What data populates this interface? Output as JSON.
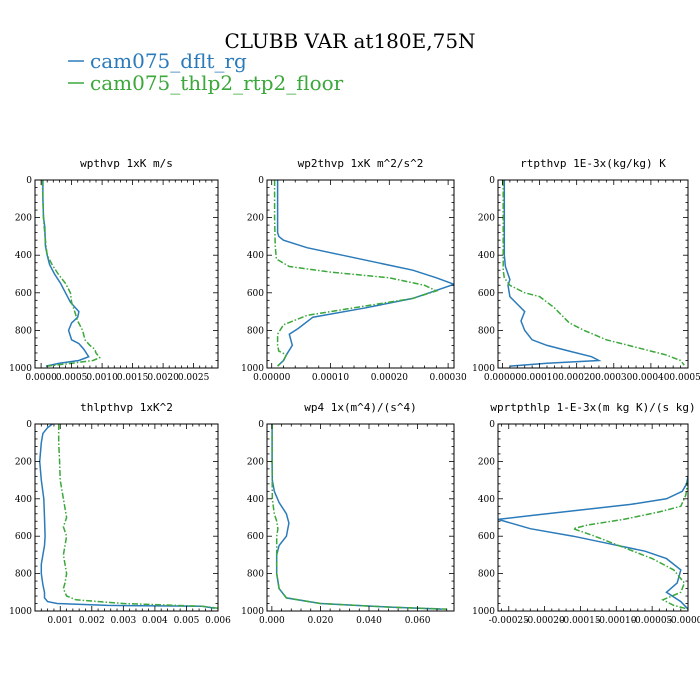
{
  "figure_title": "CLUBB VAR at180E,75N",
  "legend": [
    {
      "label": "cam075_dflt_rg",
      "color": "#2b7bba",
      "dash": "solid"
    },
    {
      "label": "cam075_thlp2_rtp2_floor",
      "color": "#3aa83a",
      "dash": "dashdot"
    }
  ],
  "chart_data": [
    {
      "type": "line",
      "title": "wpthvp  1xK m/s",
      "xlim": [
        -0.0001,
        0.0029
      ],
      "ylim": [
        1000,
        0
      ],
      "xticks": [
        0.0,
        0.0005,
        0.001,
        0.0015,
        0.002,
        0.0025
      ],
      "xtick_labels": [
        "0.0000",
        "0.0005",
        "0.0010",
        "0.0015",
        "0.0020",
        "0.0025"
      ],
      "yticks": [
        0,
        200,
        400,
        600,
        800,
        1000
      ],
      "ytick_labels": [
        "0",
        "200",
        "400",
        "600",
        "800",
        "1000"
      ],
      "series": [
        {
          "name": "cam075_dflt_rg",
          "x": [
            3e-05,
            3e-05,
            4e-05,
            6e-05,
            7e-05,
            0.0001,
            0.00014,
            0.00022,
            0.00032,
            0.0004,
            0.00048,
            0.00062,
            0.0006,
            0.0005,
            0.00045,
            0.0005,
            0.00062,
            0.0007,
            0.00078,
            0.00062,
            0.0003,
            8e-05
          ],
          "y": [
            0,
            100,
            200,
            250,
            350,
            400,
            450,
            500,
            550,
            600,
            650,
            700,
            730,
            760,
            800,
            850,
            870,
            900,
            940,
            960,
            975,
            990
          ]
        },
        {
          "name": "cam075_thlp2_rtp2_floor",
          "x": [
            2e-05,
            3e-05,
            4e-05,
            5e-05,
            8e-05,
            0.0001,
            0.00018,
            0.00028,
            0.0004,
            0.00048,
            0.0005,
            0.00055,
            0.0006,
            0.00068,
            0.00072,
            0.0008,
            0.00088,
            0.0009,
            0.00096,
            0.00085,
            0.0005,
            0.0001
          ],
          "y": [
            0,
            100,
            200,
            250,
            350,
            400,
            450,
            500,
            550,
            600,
            650,
            700,
            750,
            800,
            850,
            880,
            900,
            920,
            945,
            960,
            975,
            990
          ]
        }
      ]
    },
    {
      "type": "line",
      "title": "wp2thvp  1xK m^2/s^2",
      "xlim": [
        -8e-06,
        0.00031
      ],
      "ylim": [
        1000,
        0
      ],
      "xticks": [
        0.0,
        0.0001,
        0.0002,
        0.0003
      ],
      "xtick_labels": [
        "0.00000",
        "0.00010",
        "0.00020",
        "0.00030"
      ],
      "yticks": [
        0,
        200,
        400,
        600,
        800,
        1000
      ],
      "ytick_labels": [
        "0",
        "200",
        "400",
        "600",
        "800",
        "1000"
      ],
      "series": [
        {
          "name": "cam075_dflt_rg",
          "x": [
            1e-05,
            1e-05,
            1e-05,
            1.2e-05,
            2e-05,
            6e-05,
            0.00012,
            0.00018,
            0.00024,
            0.00028,
            0.00031,
            0.00024,
            0.00016,
            7e-05,
            4.5e-05,
            3e-05,
            3.5e-05,
            2.5e-05,
            2e-05,
            1e-05
          ],
          "y": [
            0,
            200,
            280,
            300,
            320,
            360,
            400,
            440,
            480,
            520,
            555,
            630,
            680,
            730,
            790,
            820,
            880,
            930,
            960,
            990
          ]
        },
        {
          "name": "cam075_thlp2_rtp2_floor",
          "x": [
            5e-06,
            5e-06,
            6e-06,
            8e-06,
            3e-05,
            0.0001,
            0.0002,
            0.00026,
            0.00028,
            0.00024,
            0.00014,
            6e-05,
            2e-05,
            1e-05,
            1e-05,
            1.2e-05,
            2.5e-05,
            2e-05,
            1e-05
          ],
          "y": [
            0,
            200,
            350,
            420,
            460,
            490,
            520,
            560,
            590,
            630,
            680,
            720,
            770,
            820,
            880,
            910,
            930,
            960,
            990
          ]
        }
      ]
    },
    {
      "type": "line",
      "title": "rtpthvp  1E-3x(kg/kg) K",
      "xlim": [
        -1.2e-05,
        0.0005
      ],
      "ylim": [
        1000,
        0
      ],
      "xticks": [
        0.0,
        0.0001,
        0.0002,
        0.0003,
        0.0004,
        0.0005
      ],
      "xtick_labels": [
        "0.00000",
        "0.00010",
        "0.00020",
        "0.00030",
        "0.00040",
        "0.00050"
      ],
      "yticks": [
        0,
        200,
        400,
        600,
        800,
        1000
      ],
      "ytick_labels": [
        "0",
        "200",
        "400",
        "600",
        "800",
        "1000"
      ],
      "series": [
        {
          "name": "cam075_dflt_rg",
          "x": [
            5e-06,
            5e-06,
            5e-06,
            8e-06,
            1.5e-05,
            2e-05,
            1.5e-05,
            2e-05,
            4e-05,
            6e-05,
            5e-05,
            6e-05,
            8e-05,
            0.00012,
            0.00018,
            0.00024,
            0.00026,
            0.00012,
            2e-05
          ],
          "y": [
            0,
            200,
            400,
            460,
            500,
            530,
            560,
            620,
            660,
            700,
            750,
            800,
            850,
            880,
            910,
            940,
            960,
            975,
            990
          ]
        },
        {
          "name": "cam075_thlp2_rtp2_floor",
          "x": [
            2e-06,
            2e-06,
            2e-06,
            2e-06,
            5e-06,
            2e-05,
            4e-05,
            6e-05,
            0.0001,
            0.00012,
            0.00014,
            0.00016,
            0.00018,
            0.00022,
            0.00028,
            0.00034,
            0.0004,
            0.00044,
            0.00048,
            0.00049
          ],
          "y": [
            0,
            200,
            400,
            480,
            520,
            560,
            580,
            600,
            620,
            650,
            680,
            720,
            760,
            800,
            850,
            880,
            910,
            930,
            960,
            985
          ]
        }
      ]
    },
    {
      "type": "line",
      "title": "thlpthvp  1xK^2",
      "xlim": [
        0.0002,
        0.006
      ],
      "ylim": [
        1000,
        0
      ],
      "xticks": [
        0.001,
        0.002,
        0.003,
        0.004,
        0.005,
        0.006
      ],
      "xtick_labels": [
        "0.001",
        "0.002",
        "0.003",
        "0.004",
        "0.005",
        "0.006"
      ],
      "yticks": [
        0,
        200,
        400,
        600,
        800,
        1000
      ],
      "ytick_labels": [
        "0",
        "200",
        "400",
        "600",
        "800",
        "1000"
      ],
      "series": [
        {
          "name": "cam075_dflt_rg",
          "x": [
            0.00075,
            0.0006,
            0.00045,
            0.0004,
            0.00035,
            0.0004,
            0.00048,
            0.0005,
            0.00052,
            0.0005,
            0.00045,
            0.0004,
            0.0004,
            0.00045,
            0.0005,
            0.0005,
            0.0006,
            0.0009,
            0.0025,
            0.0055,
            0.0059
          ],
          "y": [
            0,
            20,
            50,
            100,
            200,
            300,
            400,
            500,
            600,
            650,
            700,
            750,
            800,
            860,
            900,
            930,
            950,
            960,
            970,
            975,
            985
          ]
        },
        {
          "name": "cam075_thlp2_rtp2_floor",
          "x": [
            0.00095,
            0.00095,
            0.00098,
            0.001,
            0.0011,
            0.0012,
            0.0011,
            0.0012,
            0.0011,
            0.0012,
            0.00115,
            0.0011,
            0.0012,
            0.0015,
            0.003,
            0.0055,
            0.006
          ],
          "y": [
            0,
            100,
            200,
            300,
            400,
            500,
            550,
            600,
            700,
            800,
            850,
            880,
            920,
            940,
            960,
            975,
            985
          ]
        }
      ]
    },
    {
      "type": "line",
      "title": "wp4  1x(m^4)/(s^4)",
      "xlim": [
        -0.002,
        0.075
      ],
      "ylim": [
        1000,
        0
      ],
      "xticks": [
        0.0,
        0.02,
        0.04,
        0.06
      ],
      "xtick_labels": [
        "0.000",
        "0.020",
        "0.040",
        "0.060"
      ],
      "yticks": [
        0,
        200,
        400,
        600,
        800,
        1000
      ],
      "ytick_labels": [
        "0",
        "200",
        "400",
        "600",
        "800",
        "1000"
      ],
      "series": [
        {
          "name": "cam075_dflt_rg",
          "x": [
            0.0001,
            0.0001,
            0.0002,
            0.001,
            0.003,
            0.006,
            0.007,
            0.006,
            0.003,
            0.002,
            0.002,
            0.002,
            0.003,
            0.006,
            0.02,
            0.05,
            0.07
          ],
          "y": [
            0,
            200,
            300,
            360,
            420,
            480,
            530,
            600,
            650,
            700,
            750,
            800,
            880,
            930,
            960,
            980,
            990
          ]
        },
        {
          "name": "cam075_thlp2_rtp2_floor",
          "x": [
            0.0001,
            0.0001,
            0.0002,
            0.001,
            0.002,
            0.0025,
            0.002,
            0.002,
            0.002,
            0.002,
            0.003,
            0.006,
            0.02,
            0.05,
            0.072
          ],
          "y": [
            0,
            200,
            400,
            480,
            520,
            560,
            600,
            650,
            700,
            800,
            880,
            930,
            960,
            980,
            990
          ]
        }
      ]
    },
    {
      "type": "line",
      "title": "wprtpthlp  1-E-3x(m kg K)/(s kg)",
      "xlim": [
        -0.000265,
        0.0
      ],
      "ylim": [
        1000,
        0
      ],
      "xticks": [
        -0.00025,
        -0.0002,
        -0.00015,
        -0.0001,
        -5e-05,
        0.0
      ],
      "xtick_labels": [
        "-0.00025",
        "-0.00020",
        "-0.00015",
        "-0.00010",
        "-0.00005",
        "-0.00000"
      ],
      "yticks": [
        0,
        200,
        400,
        600,
        800,
        1000
      ],
      "ytick_labels": [
        "0",
        "200",
        "400",
        "600",
        "800",
        "1000"
      ],
      "series": [
        {
          "name": "cam075_dflt_rg",
          "x": [
            0.0,
            -2e-06,
            -8e-06,
            -3e-05,
            -8e-05,
            -0.00015,
            -0.00022,
            -0.000265,
            -0.00022,
            -0.00016,
            -0.00011,
            -6e-05,
            -3e-05,
            -1e-05,
            -1.5e-05,
            -3e-05,
            -1e-05,
            0.0
          ],
          "y": [
            280,
            320,
            360,
            400,
            430,
            460,
            490,
            510,
            560,
            600,
            640,
            680,
            720,
            780,
            850,
            900,
            950,
            990
          ]
        },
        {
          "name": "cam075_thlp2_rtp2_floor",
          "x": [
            0.0,
            -3e-06,
            -1e-05,
            -4e-05,
            -9e-05,
            -0.00014,
            -0.00016,
            -0.00013,
            -9e-05,
            -5e-05,
            -2e-05,
            -5e-06,
            -1e-05,
            -3.5e-05,
            -2e-05,
            0.0
          ],
          "y": [
            300,
            380,
            440,
            470,
            510,
            540,
            560,
            600,
            660,
            720,
            780,
            850,
            900,
            940,
            970,
            990
          ]
        }
      ]
    }
  ]
}
